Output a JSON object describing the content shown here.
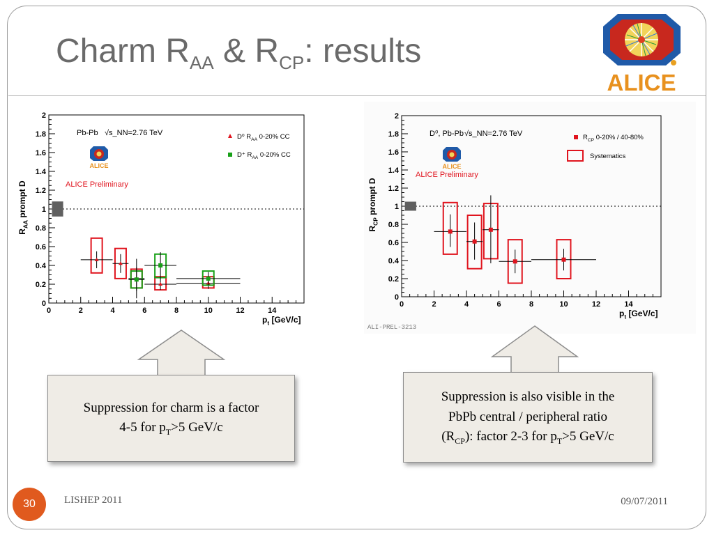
{
  "slide": {
    "title_main": "Charm R",
    "title_sub1": "AA",
    "title_mid": " & R",
    "title_sub2": "CP",
    "title_end": ": results",
    "logo_text": "ALICE",
    "slide_number": "30",
    "footer_left": "LISHEP 2011",
    "footer_right": "09/07/2011",
    "figure_id": "ALI-PREL-3213",
    "colors": {
      "accent": "#e05a1e",
      "red": "#e0141e",
      "green": "#18a018",
      "callout_bg": "#efece6"
    }
  },
  "callouts": {
    "left": {
      "line1": "Suppression for charm is a factor",
      "line2_pre": "4-5  for p",
      "line2_sub": "T",
      "line2_post": ">5 GeV/c"
    },
    "right": {
      "line1": "Suppression is also visible in the",
      "line2": "PbPb central / peripheral ratio",
      "line3_pre": "(R",
      "line3_sub": "CP",
      "line3_mid": "): factor 2-3 for p",
      "line3_sub2": "T",
      "line3_post": ">5 GeV/c"
    }
  },
  "chart_data": [
    {
      "type": "scatter",
      "ylabel": "R_AA prompt D",
      "xlabel": "p_t [GeV/c]",
      "xlim": [
        0,
        16
      ],
      "ylim": [
        0,
        2
      ],
      "xticks": [
        "0",
        "2",
        "4",
        "6",
        "8",
        "10",
        "12",
        "14"
      ],
      "yticks": [
        "0",
        "0.2",
        "0.4",
        "0.6",
        "0.8",
        "1",
        "1.2",
        "1.4",
        "1.6",
        "1.8",
        "2"
      ],
      "reference_line": 1,
      "texts": {
        "system": "Pb-Pb",
        "energy": "√s_NN=2.76 TeV",
        "preliminary": "ALICE Preliminary",
        "logo": "ALICE"
      },
      "series": [
        {
          "name": "D⁰ R_AA 0-20% CC",
          "legend_main": "D⁰ R",
          "legend_sub": "AA",
          "legend_post": " 0-20% CC",
          "color": "#e0141e",
          "marker": "triangle",
          "points": [
            {
              "x": 3.0,
              "y": 0.46,
              "xlo": 2.0,
              "xhi": 4.0,
              "ylo": 0.37,
              "yhi": 0.55,
              "slo": 0.32,
              "shi": 0.69
            },
            {
              "x": 4.5,
              "y": 0.42,
              "xlo": 4.0,
              "xhi": 5.0,
              "ylo": 0.32,
              "yhi": 0.52,
              "slo": 0.26,
              "shi": 0.58
            },
            {
              "x": 5.5,
              "y": 0.26,
              "xlo": 5.0,
              "xhi": 6.0,
              "ylo": 0.13,
              "yhi": 0.38,
              "slo": 0.16,
              "shi": 0.36
            },
            {
              "x": 7.0,
              "y": 0.2,
              "xlo": 6.0,
              "xhi": 8.0,
              "ylo": 0.14,
              "yhi": 0.28,
              "slo": 0.14,
              "shi": 0.28
            },
            {
              "x": 10.0,
              "y": 0.21,
              "xlo": 8.0,
              "xhi": 12.0,
              "ylo": 0.15,
              "yhi": 0.29,
              "slo": 0.16,
              "shi": 0.28
            }
          ]
        },
        {
          "name": "D⁺ R_AA 0-20% CC",
          "legend_main": "D⁺ R",
          "legend_sub": "AA",
          "legend_post": " 0-20% CC",
          "color": "#18a018",
          "marker": "square",
          "points": [
            {
              "x": 5.5,
              "y": 0.25,
              "xlo": 5.0,
              "xhi": 6.0,
              "ylo": 0.05,
              "yhi": 0.47,
              "slo": 0.16,
              "shi": 0.34
            },
            {
              "x": 7.0,
              "y": 0.4,
              "xlo": 6.0,
              "xhi": 8.0,
              "ylo": 0.26,
              "yhi": 0.54,
              "slo": 0.27,
              "shi": 0.52
            },
            {
              "x": 10.0,
              "y": 0.26,
              "xlo": 8.0,
              "xhi": 12.0,
              "ylo": 0.19,
              "yhi": 0.33,
              "slo": 0.19,
              "shi": 0.34
            }
          ]
        }
      ]
    },
    {
      "type": "scatter",
      "ylabel": "R_CP prompt D",
      "xlabel": "p_t [GeV/c]",
      "xlim": [
        0,
        16
      ],
      "ylim": [
        0,
        2
      ],
      "xticks": [
        "0",
        "2",
        "4",
        "6",
        "8",
        "10",
        "12",
        "14"
      ],
      "yticks": [
        "0",
        "0.2",
        "0.4",
        "0.6",
        "0.8",
        "1",
        "1.2",
        "1.4",
        "1.6",
        "1.8",
        "2"
      ],
      "reference_line": 1,
      "texts": {
        "system": "D⁰, Pb-Pb",
        "energy": "√s_NN=2.76 TeV",
        "preliminary": "ALICE Preliminary",
        "logo": "ALICE",
        "legend_syst": "Systematics"
      },
      "series": [
        {
          "name": "R_CP 0-20% / 40-80%",
          "legend_main": "R",
          "legend_sub": "CP",
          "legend_post": " 0-20% / 40-80%",
          "color": "#e0141e",
          "marker": "square",
          "points": [
            {
              "x": 3.0,
              "y": 0.72,
              "xlo": 2.0,
              "xhi": 4.0,
              "ylo": 0.55,
              "yhi": 0.91,
              "slo": 0.47,
              "shi": 1.04
            },
            {
              "x": 4.5,
              "y": 0.61,
              "xlo": 4.0,
              "xhi": 5.0,
              "ylo": 0.41,
              "yhi": 0.82,
              "slo": 0.31,
              "shi": 0.9
            },
            {
              "x": 5.5,
              "y": 0.74,
              "xlo": 5.0,
              "xhi": 6.0,
              "ylo": 0.37,
              "yhi": 1.12,
              "slo": 0.42,
              "shi": 1.03
            },
            {
              "x": 7.0,
              "y": 0.39,
              "xlo": 6.0,
              "xhi": 8.0,
              "ylo": 0.26,
              "yhi": 0.52,
              "slo": 0.15,
              "shi": 0.63
            },
            {
              "x": 10.0,
              "y": 0.41,
              "xlo": 8.0,
              "xhi": 12.0,
              "ylo": 0.29,
              "yhi": 0.53,
              "slo": 0.2,
              "shi": 0.63
            }
          ]
        }
      ]
    }
  ]
}
